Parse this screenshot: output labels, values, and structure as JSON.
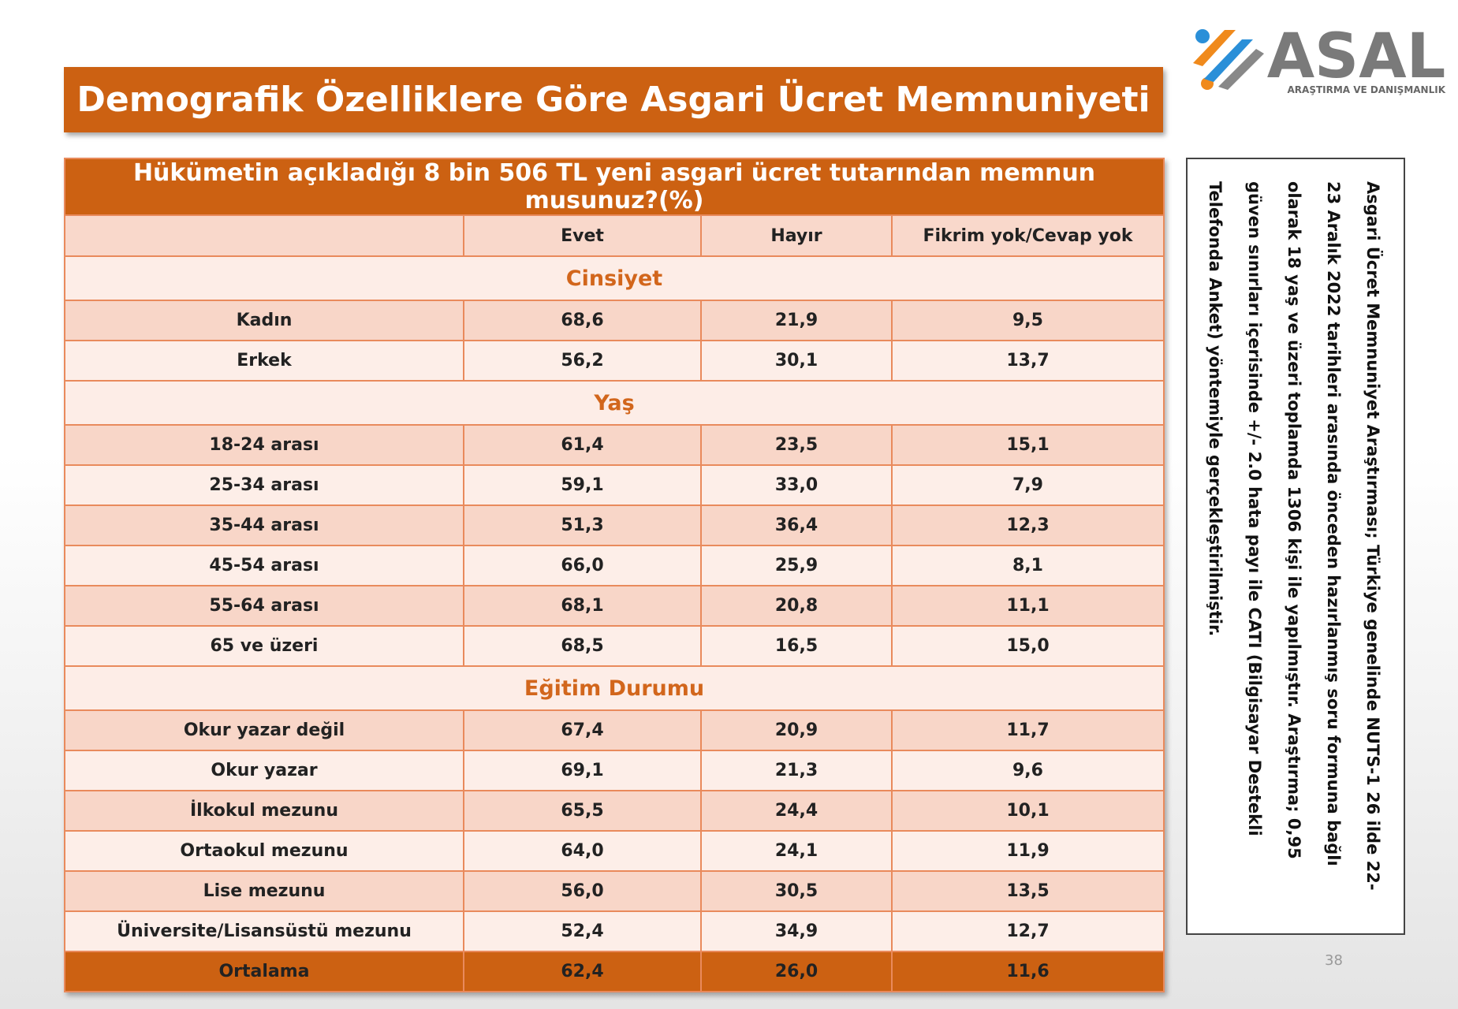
{
  "header": {
    "title": "Demografik Özelliklere Göre Asgari Ücret Memnuniyeti"
  },
  "logo": {
    "name": "ASAL",
    "tagline": "ARAŞTIRMA VE DANIŞMANLIK"
  },
  "table": {
    "title": "Hükümetin açıkladığı  8 bin 506 TL yeni asgari ücret tutarından  memnun musunuz?(%)",
    "columns": [
      "Evet",
      "Hayır",
      "Fikrim yok/Cevap yok"
    ],
    "sections": [
      {
        "name": "Cinsiyet",
        "rows": [
          {
            "label": "Kadın",
            "values": [
              "68,6",
              "21,9",
              "9,5"
            ]
          },
          {
            "label": "Erkek",
            "values": [
              "56,2",
              "30,1",
              "13,7"
            ]
          }
        ]
      },
      {
        "name": "Yaş",
        "rows": [
          {
            "label": "18-24 arası",
            "values": [
              "61,4",
              "23,5",
              "15,1"
            ]
          },
          {
            "label": "25-34 arası",
            "values": [
              "59,1",
              "33,0",
              "7,9"
            ]
          },
          {
            "label": "35-44 arası",
            "values": [
              "51,3",
              "36,4",
              "12,3"
            ]
          },
          {
            "label": "45-54 arası",
            "values": [
              "66,0",
              "25,9",
              "8,1"
            ]
          },
          {
            "label": "55-64 arası",
            "values": [
              "68,1",
              "20,8",
              "11,1"
            ]
          },
          {
            "label": "65 ve üzeri",
            "values": [
              "68,5",
              "16,5",
              "15,0"
            ]
          }
        ]
      },
      {
        "name": "Eğitim Durumu",
        "rows": [
          {
            "label": "Okur yazar değil",
            "values": [
              "67,4",
              "20,9",
              "11,7"
            ]
          },
          {
            "label": "Okur yazar",
            "values": [
              "69,1",
              "21,3",
              "9,6"
            ]
          },
          {
            "label": "İlkokul mezunu",
            "values": [
              "65,5",
              "24,4",
              "10,1"
            ]
          },
          {
            "label": "Ortaokul mezunu",
            "values": [
              "64,0",
              "24,1",
              "11,9"
            ]
          },
          {
            "label": "Lise mezunu",
            "values": [
              "56,0",
              "30,5",
              "13,5"
            ]
          },
          {
            "label": "Üniversite/Lisansüstü mezunu",
            "values": [
              "52,4",
              "34,9",
              "12,7"
            ]
          }
        ]
      }
    ],
    "average": {
      "label": "Ortalama",
      "values": [
        "62,4",
        "26,0",
        "11,6"
      ]
    }
  },
  "note": "Asgari Ücret Memnuniyet Araştırması; Türkiye genelinde NUTS-1 26 ilde 22-23 Aralık 2022 tarihleri arasında önceden hazırlanmış soru formuna bağlı olarak 18 yaş ve üzeri toplamda 1306 kişi ile yapılmıştır. Araştırma; 0,95 güven sınırları içerisinde +/- 2.0 hata payı ile CATI (Bilgisayar Destekli Telefonda Anket) yöntemiyle gerçekleştirilmiştir.",
  "page_number": "38"
}
